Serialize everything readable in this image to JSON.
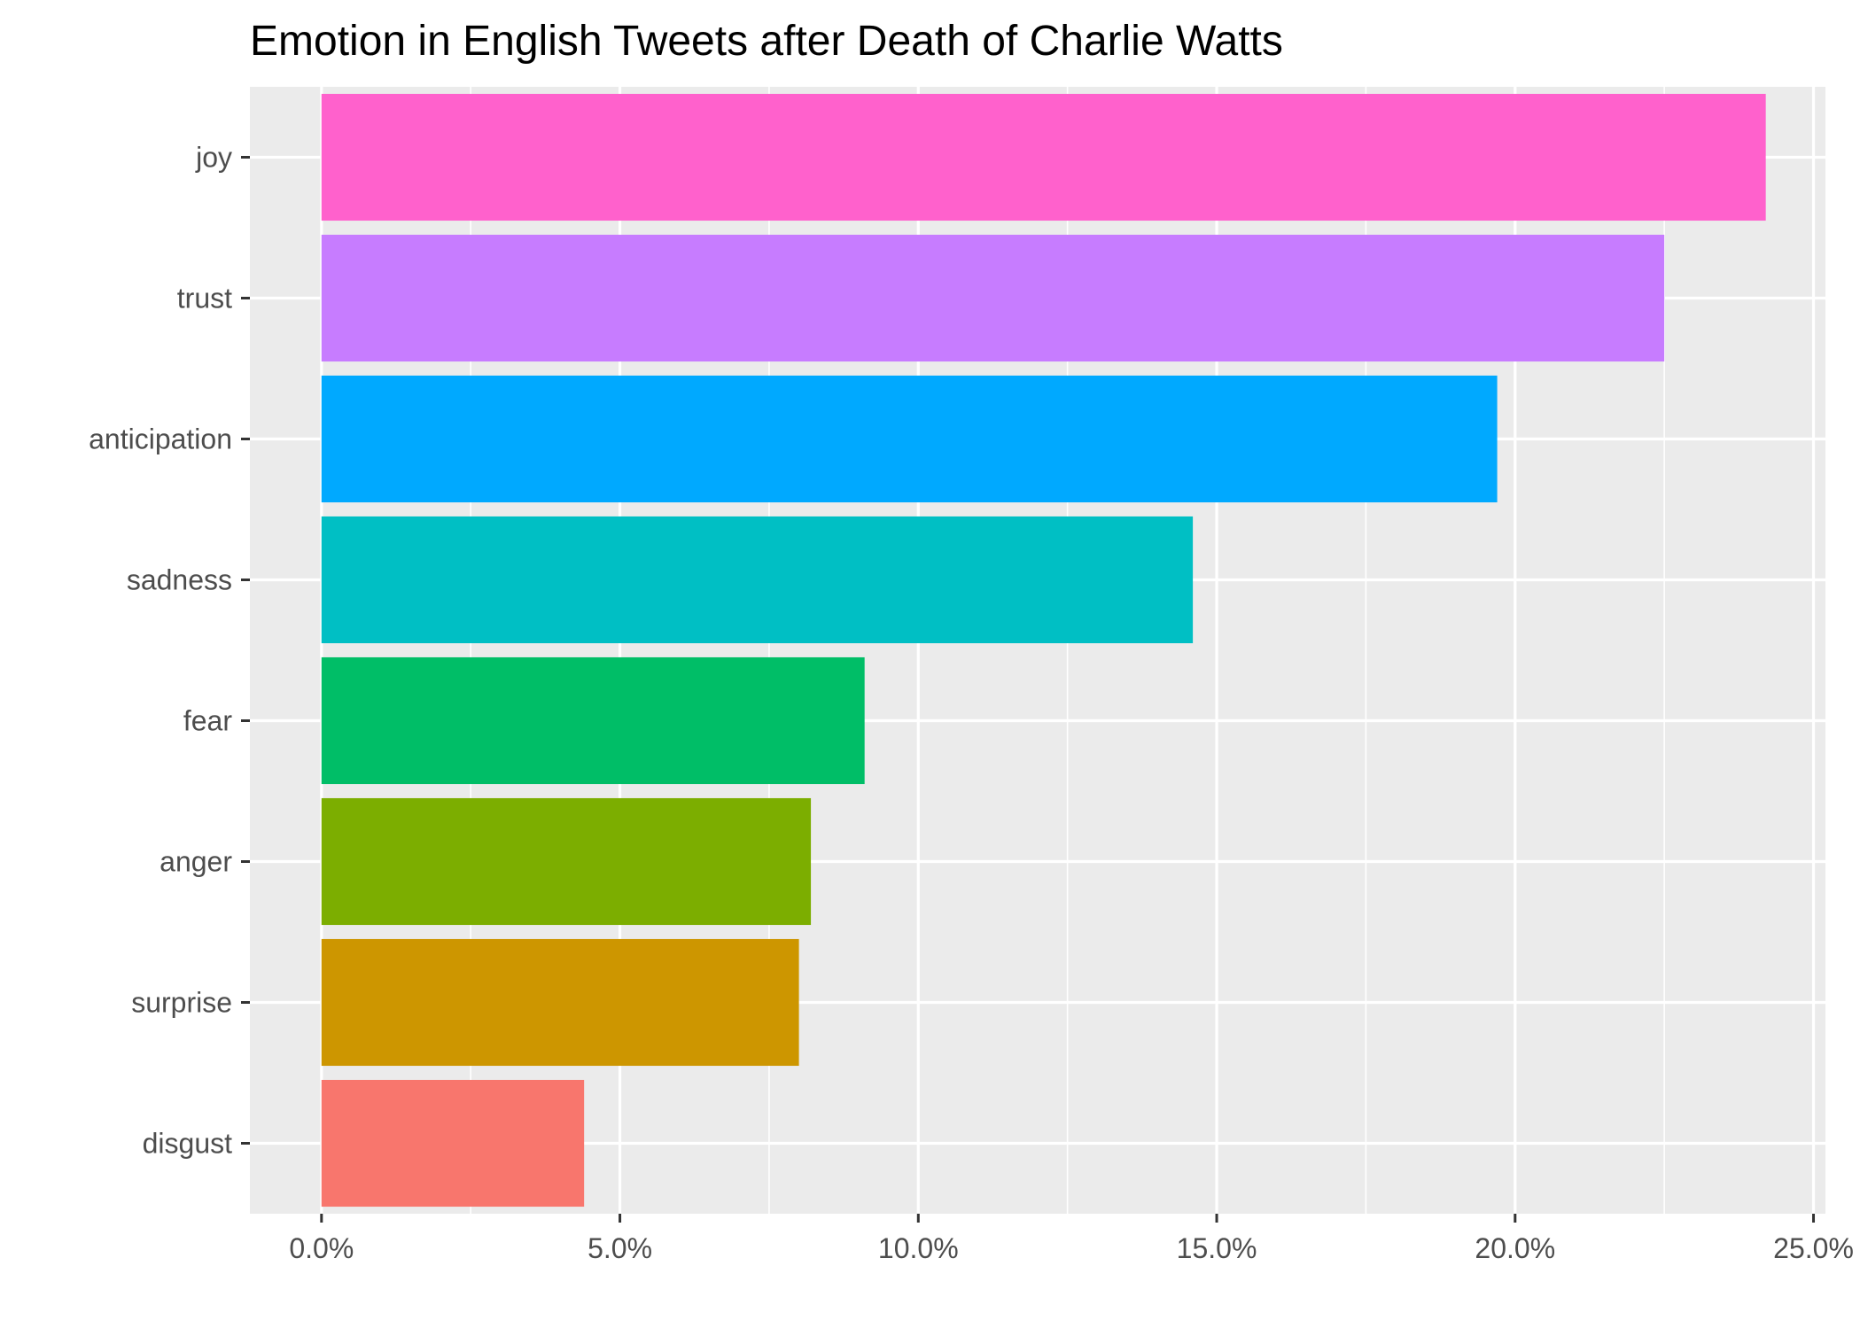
{
  "chart_data": {
    "type": "bar",
    "orientation": "horizontal",
    "title": "Emotion in English Tweets after Death of Charlie Watts",
    "xlabel": "",
    "ylabel": "",
    "xlim": [
      -1.2,
      25.2
    ],
    "x_ticks": [
      0,
      5,
      10,
      15,
      20,
      25
    ],
    "x_tick_labels": [
      "0.0%",
      "5.0%",
      "10.0%",
      "15.0%",
      "20.0%",
      "25.0%"
    ],
    "grid": true,
    "legend": "none",
    "categories": [
      "joy",
      "trust",
      "anticipation",
      "sadness",
      "fear",
      "anger",
      "surprise",
      "disgust"
    ],
    "values": [
      24.2,
      22.5,
      19.7,
      14.6,
      9.1,
      8.2,
      8.0,
      4.4
    ],
    "colors": [
      "#FF61CC",
      "#C77CFF",
      "#00A9FF",
      "#00BFC4",
      "#00BE67",
      "#7CAE00",
      "#CD9600",
      "#F8766D"
    ]
  },
  "style": {
    "panel_background": "#EBEBEB",
    "grid_color": "#FFFFFF",
    "tick_color": "#333333",
    "tick_label_color": "#4D4D4D",
    "title_color": "#000000"
  }
}
